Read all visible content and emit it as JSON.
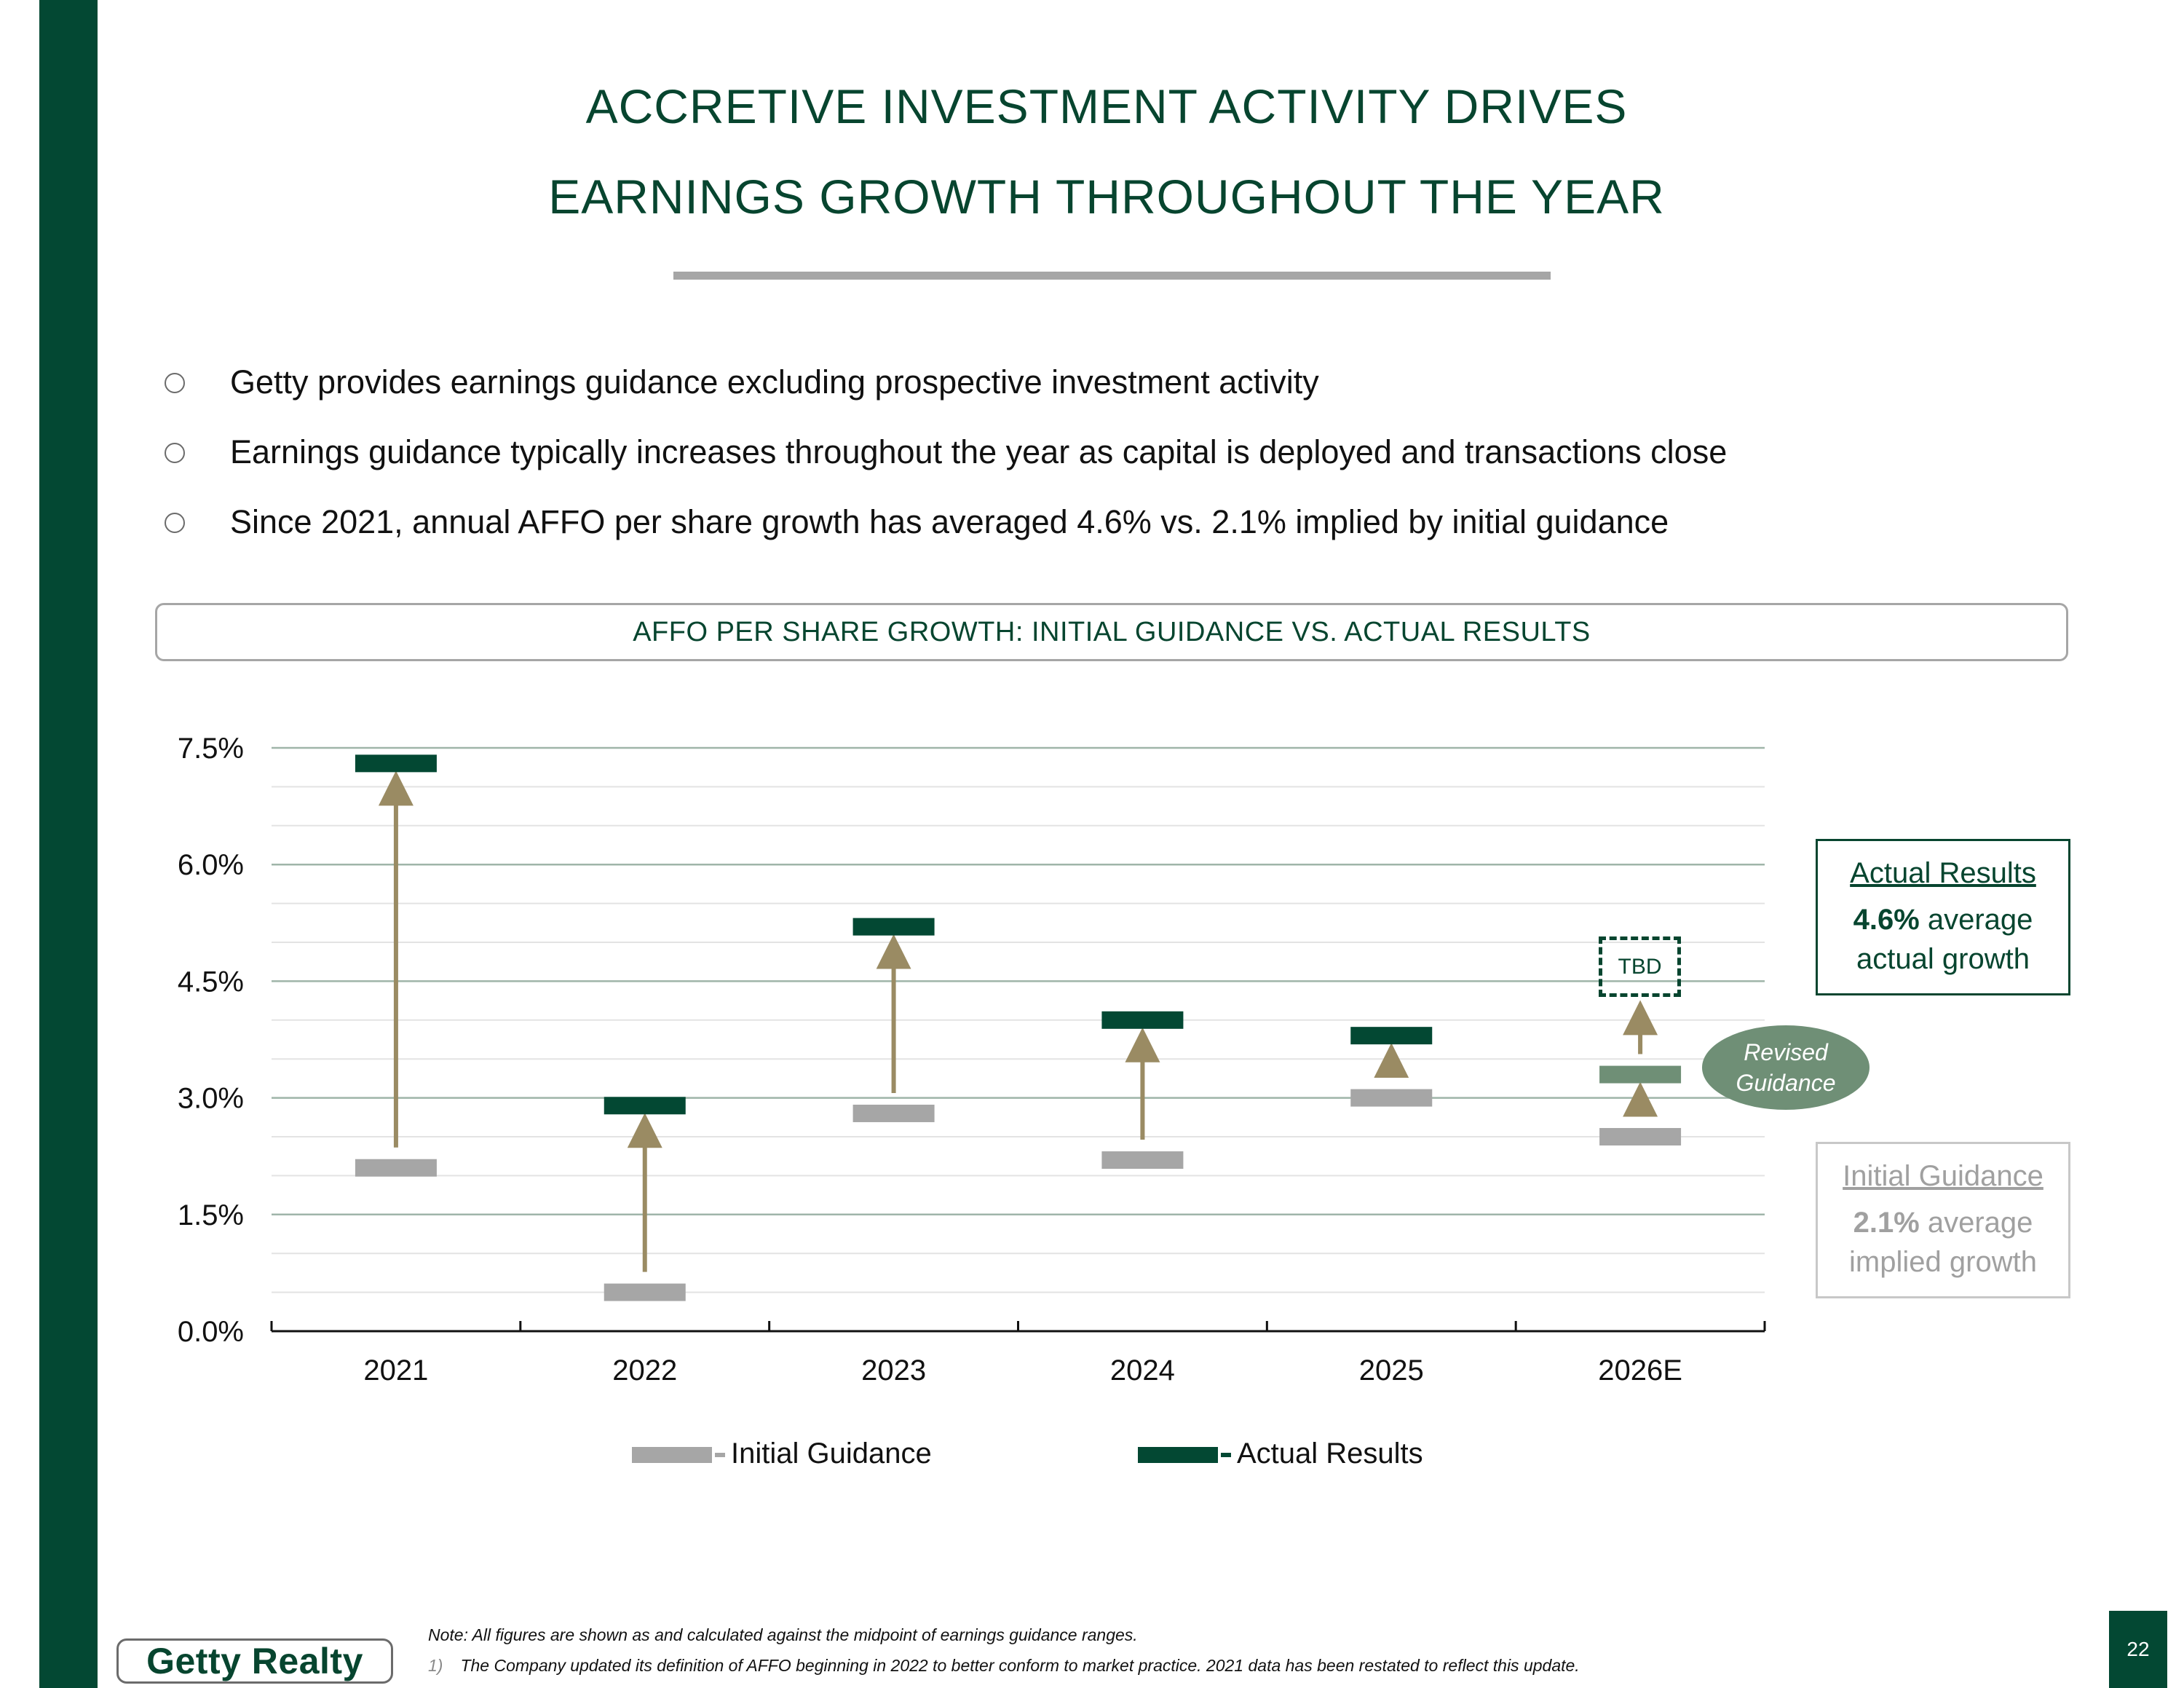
{
  "slide": {
    "title_line1": "ACCRETIVE INVESTMENT ACTIVITY DRIVES",
    "title_line2": "EARNINGS GROWTH THROUGHOUT THE YEAR",
    "bullets": [
      "Getty provides earnings guidance excluding prospective investment activity",
      "Earnings guidance typically increases throughout the year as capital is deployed and transactions close",
      "Since 2021, annual AFFO per share growth has averaged 4.6% vs. 2.1% implied by initial guidance"
    ],
    "chart_banner": "AFFO PER SHARE GROWTH: INITIAL GUIDANCE VS. ACTUAL RESULTS",
    "actual_box": {
      "heading": "Actual Results",
      "value": "4.6%",
      "text1": " average",
      "text2": "actual growth"
    },
    "initial_box": {
      "heading": "Initial Guidance",
      "value": "2.1%",
      "text1": " average",
      "text2": "implied growth"
    },
    "revised_label_line1": "Revised",
    "revised_label_line2": "Guidance",
    "tbd_label": "TBD",
    "legend": {
      "initial": "Initial Guidance",
      "actual": "Actual Results"
    },
    "note": "Note: All figures are shown as and calculated against the midpoint of earnings guidance ranges.",
    "footnote_number": "1)",
    "footnote": "The Company updated its definition of AFFO beginning in 2022 to better conform to market practice. 2021 data has been restated to reflect this update.",
    "logo_text": "Getty Realty",
    "page_number": "22"
  },
  "colors": {
    "brand_green": "#034833",
    "initial_gray": "#a6a6a6",
    "arrow_tan": "#9a8b63",
    "revised_green": "#6f8f76"
  },
  "chart_data": {
    "type": "range",
    "categories": [
      "2021",
      "2022",
      "2023",
      "2024",
      "2025",
      "2026E"
    ],
    "series": [
      {
        "name": "Initial Guidance",
        "values": [
          2.1,
          0.5,
          2.8,
          2.2,
          3.0,
          2.5
        ]
      },
      {
        "name": "Actual Results",
        "values": [
          7.3,
          2.9,
          5.2,
          4.0,
          3.8,
          null
        ]
      }
    ],
    "revised_guidance": {
      "category": "2026E",
      "value": 3.3
    },
    "ylim": [
      0,
      7.5
    ],
    "yticks": [
      "0.0%",
      "1.5%",
      "3.0%",
      "4.5%",
      "6.0%",
      "7.5%"
    ],
    "ytick_values": [
      0,
      1.5,
      3.0,
      4.5,
      6.0,
      7.5
    ],
    "grid": true,
    "legend_position": "bottom"
  }
}
